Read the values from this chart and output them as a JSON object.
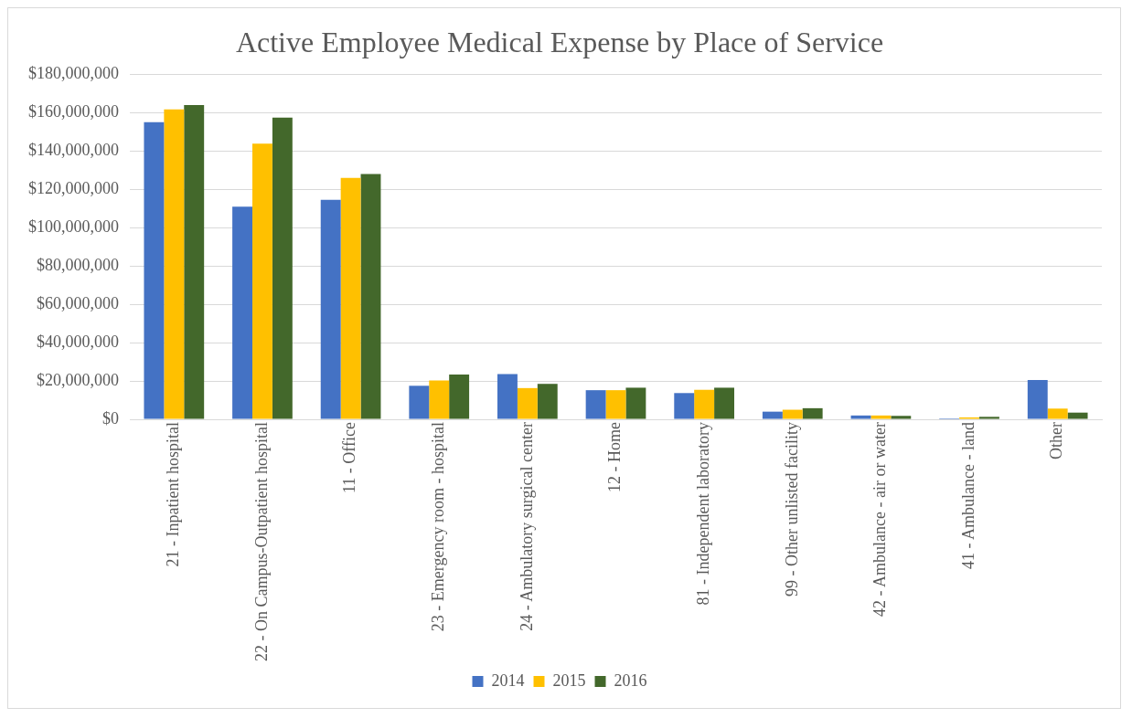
{
  "chart_data": {
    "type": "bar",
    "title": "Active Employee Medical Expense by Place of Service",
    "categories": [
      "21 - Inpatient hospital",
      "22 - On Campus-Outpatient hospital",
      "11 - Office",
      "23 - Emergency room - hospital",
      "24 - Ambulatory surgical center",
      "12 - Home",
      "81 - Independent laboratory",
      "99 - Other unlisted facility",
      "42 - Ambulance - air or water",
      "41 - Ambulance - land",
      "Other"
    ],
    "series": [
      {
        "name": "2014",
        "color": "#4472c4",
        "values": [
          155000000,
          111000000,
          114500000,
          17500000,
          23600000,
          15200000,
          13700000,
          4000000,
          2000000,
          500000,
          20500000
        ]
      },
      {
        "name": "2015",
        "color": "#ffc000",
        "values": [
          161700000,
          143800000,
          126000000,
          20300000,
          16300000,
          15200000,
          15400000,
          5000000,
          2000000,
          1000000,
          5600000
        ]
      },
      {
        "name": "2016",
        "color": "#43682b",
        "values": [
          164000000,
          157400000,
          128000000,
          23400000,
          18500000,
          16500000,
          16500000,
          5800000,
          1800000,
          1300000,
          3500000
        ]
      }
    ],
    "ylim": [
      0,
      180000000
    ],
    "yticks": [
      {
        "value": 0,
        "label": "$0"
      },
      {
        "value": 20000000,
        "label": "$20,000,000"
      },
      {
        "value": 40000000,
        "label": "$40,000,000"
      },
      {
        "value": 60000000,
        "label": "$60,000,000"
      },
      {
        "value": 80000000,
        "label": "$80,000,000"
      },
      {
        "value": 100000000,
        "label": "$100,000,000"
      },
      {
        "value": 120000000,
        "label": "$120,000,000"
      },
      {
        "value": 140000000,
        "label": "$140,000,000"
      },
      {
        "value": 160000000,
        "label": "$160,000,000"
      },
      {
        "value": 180000000,
        "label": "$180,000,000"
      }
    ],
    "grid": "y",
    "legend": "bottom"
  }
}
